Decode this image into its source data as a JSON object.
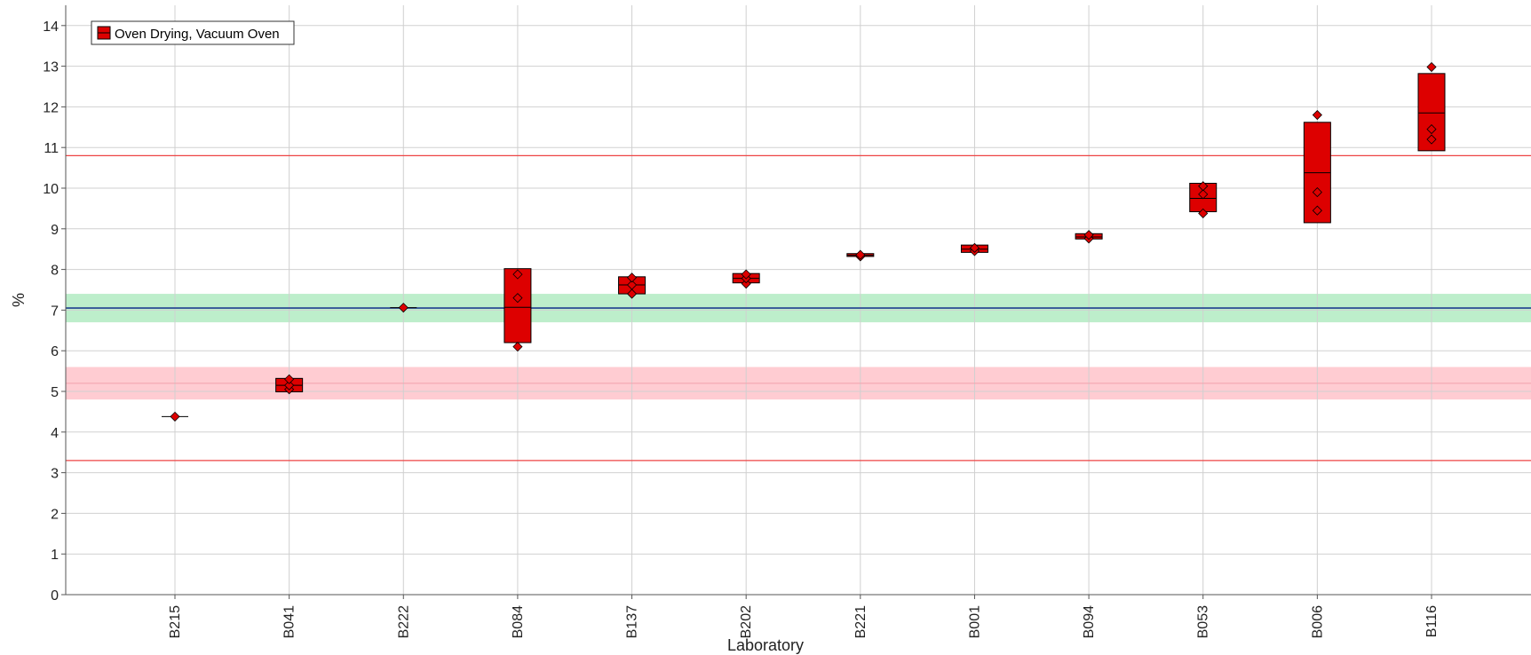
{
  "chart_data": {
    "type": "box",
    "title": "",
    "xlabel": "Laboratory",
    "ylabel": "%",
    "ylim": [
      0,
      14.5
    ],
    "yticks": [
      0,
      1,
      2,
      3,
      4,
      5,
      6,
      7,
      8,
      9,
      10,
      11,
      12,
      13,
      14
    ],
    "grid": true,
    "legend": {
      "position": "top-left",
      "entries": [
        "Oven Drying, Vacuum Oven"
      ]
    },
    "colors": {
      "series": "#dd0000",
      "consensus_line": "#1f3f8f",
      "consensus_band": "#bdeecb",
      "limit_line": "#ee4444",
      "highlight_band": "#ffccd2"
    },
    "reference": {
      "consensus": 7.05,
      "consensus_band": [
        6.7,
        7.4
      ],
      "limit_lines": [
        3.3,
        10.8
      ],
      "highlight_line": 5.2,
      "highlight_band": [
        4.8,
        5.6
      ]
    },
    "series": [
      {
        "name": "Oven Drying, Vacuum Oven",
        "groups": [
          {
            "lab": "B215",
            "low": 4.38,
            "high": 4.38,
            "median": 4.38,
            "points": [
              4.38
            ]
          },
          {
            "lab": "B041",
            "low": 4.99,
            "high": 5.32,
            "median": 5.15,
            "points": [
              5.05,
              5.15,
              5.3
            ]
          },
          {
            "lab": "B222",
            "low": 7.06,
            "high": 7.06,
            "median": 7.06,
            "points": [
              7.06
            ]
          },
          {
            "lab": "B084",
            "low": 6.2,
            "high": 8.02,
            "median": 7.07,
            "points": [
              6.1,
              7.3,
              7.88
            ]
          },
          {
            "lab": "B137",
            "low": 7.4,
            "high": 7.82,
            "median": 7.62,
            "points": [
              7.4,
              7.62,
              7.8
            ]
          },
          {
            "lab": "B202",
            "low": 7.67,
            "high": 7.9,
            "median": 7.78,
            "points": [
              7.65,
              7.78,
              7.88
            ]
          },
          {
            "lab": "B221",
            "low": 8.32,
            "high": 8.39,
            "median": 8.35,
            "points": [
              8.32,
              8.36
            ]
          },
          {
            "lab": "B001",
            "low": 8.42,
            "high": 8.6,
            "median": 8.5,
            "points": [
              8.45,
              8.53
            ]
          },
          {
            "lab": "B094",
            "low": 8.75,
            "high": 8.88,
            "median": 8.8,
            "points": [
              8.76,
              8.85
            ]
          },
          {
            "lab": "B053",
            "low": 9.42,
            "high": 10.12,
            "median": 9.75,
            "points": [
              9.38,
              9.85,
              10.05
            ]
          },
          {
            "lab": "B006",
            "low": 9.15,
            "high": 11.62,
            "median": 10.38,
            "points": [
              9.45,
              9.9,
              11.8
            ]
          },
          {
            "lab": "B116",
            "low": 10.92,
            "high": 12.82,
            "median": 11.85,
            "points": [
              11.2,
              11.45,
              12.98
            ]
          }
        ]
      }
    ]
  }
}
